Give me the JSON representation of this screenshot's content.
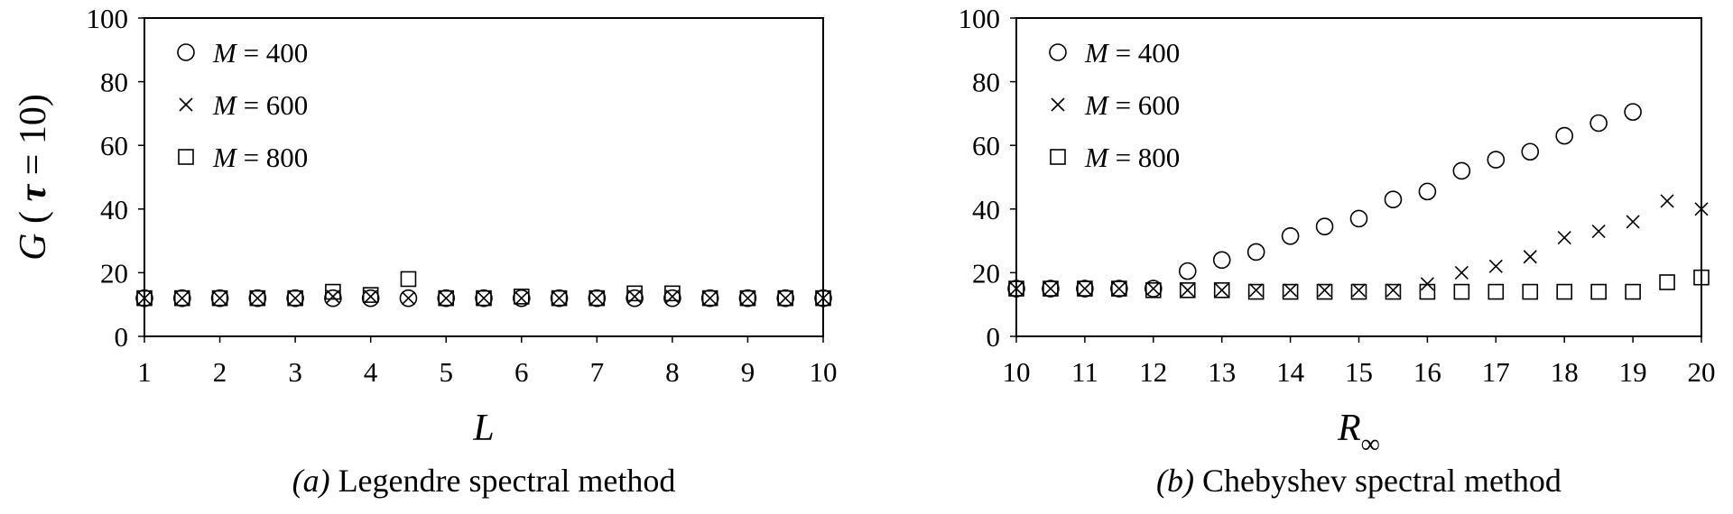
{
  "chart_data": [
    {
      "type": "scatter",
      "panel_label": "(a)",
      "caption": "Legendre spectral method",
      "xlabel": "L",
      "ylabel": "G ( τ = 10)",
      "xlim": [
        1,
        10
      ],
      "ylim": [
        0,
        100
      ],
      "xticks": [
        1,
        2,
        3,
        4,
        5,
        6,
        7,
        8,
        9,
        10
      ],
      "yticks": [
        0,
        20,
        40,
        60,
        80,
        100
      ],
      "grid": false,
      "legend_position": "top-left",
      "x": [
        1,
        1.5,
        2,
        2.5,
        3,
        3.5,
        4,
        4.5,
        5,
        5.5,
        6,
        6.5,
        7,
        7.5,
        8,
        8.5,
        9,
        9.5,
        10
      ],
      "series": [
        {
          "name": "M = 400",
          "marker": "circle",
          "values": [
            12,
            12,
            12,
            12,
            12,
            12,
            12,
            12,
            12,
            12,
            12,
            12,
            12,
            12,
            12,
            12,
            12,
            12,
            12
          ]
        },
        {
          "name": "M = 600",
          "marker": "cross",
          "values": [
            12,
            12,
            12,
            12,
            12,
            12.5,
            12.5,
            12,
            12,
            12,
            12,
            12,
            12,
            12.5,
            12.5,
            12,
            12,
            12,
            12
          ]
        },
        {
          "name": "M = 800",
          "marker": "square",
          "values": [
            12,
            12,
            12,
            12,
            12,
            14,
            13,
            18,
            12,
            12,
            12.5,
            12,
            12,
            13.5,
            13.5,
            12,
            12,
            12,
            12
          ]
        }
      ]
    },
    {
      "type": "scatter",
      "panel_label": "(b)",
      "caption": "Chebyshev spectral method",
      "xlabel": "R∞",
      "ylabel": "",
      "xlim": [
        10,
        20
      ],
      "ylim": [
        0,
        100
      ],
      "xticks": [
        10,
        11,
        12,
        13,
        14,
        15,
        16,
        17,
        18,
        19,
        20
      ],
      "yticks": [
        0,
        20,
        40,
        60,
        80,
        100
      ],
      "grid": false,
      "legend_position": "top-left",
      "x": [
        10,
        10.5,
        11,
        11.5,
        12,
        12.5,
        13,
        13.5,
        14,
        14.5,
        15,
        15.5,
        16,
        16.5,
        17,
        17.5,
        18,
        18.5,
        19,
        19.5,
        20
      ],
      "series": [
        {
          "name": "M = 400",
          "marker": "circle",
          "values": [
            15,
            15,
            15,
            15,
            15,
            20.5,
            24,
            26.5,
            31.5,
            34.5,
            37,
            43,
            45.5,
            52,
            55.5,
            58,
            63,
            67,
            70.5,
            null,
            null
          ]
        },
        {
          "name": "M = 600",
          "marker": "cross",
          "values": [
            15,
            15,
            15,
            15,
            15,
            14.5,
            14.5,
            14.5,
            14.5,
            14.5,
            14.5,
            14.5,
            16.5,
            20,
            22,
            25,
            31,
            33,
            36,
            42.5,
            40
          ]
        },
        {
          "name": "M = 800",
          "marker": "square",
          "values": [
            15,
            15,
            15,
            15,
            14.5,
            14.5,
            14.5,
            14,
            14,
            14,
            14,
            14,
            14,
            14,
            14,
            14,
            14,
            14,
            14,
            17,
            18.5
          ]
        }
      ]
    }
  ]
}
